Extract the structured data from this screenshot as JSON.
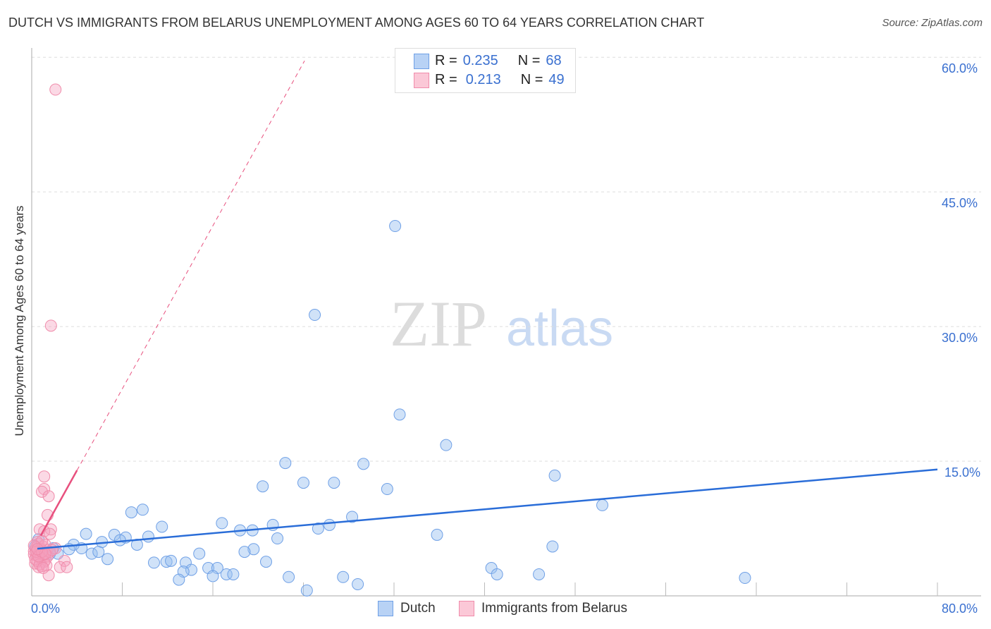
{
  "title": "DUTCH VS IMMIGRANTS FROM BELARUS UNEMPLOYMENT AMONG AGES 60 TO 64 YEARS CORRELATION CHART",
  "source": "Source: ZipAtlas.com",
  "watermark": "ZIPatlas",
  "chart_data": {
    "type": "scatter",
    "title": "DUTCH VS IMMIGRANTS FROM BELARUS UNEMPLOYMENT AMONG AGES 60 TO 64 YEARS CORRELATION CHART",
    "xlabel": "",
    "ylabel": "Unemployment Among Ages 60 to 64 years",
    "xlim": [
      0,
      80
    ],
    "ylim": [
      0,
      62
    ],
    "x_tick_labels": [
      "0.0%",
      "80.0%"
    ],
    "y_tick_labels": [
      "15.0%",
      "30.0%",
      "45.0%",
      "60.0%"
    ],
    "y_ticks": [
      15,
      30,
      45,
      60
    ],
    "grid": true,
    "legend_placement": "top-center",
    "series": [
      {
        "name": "Dutch",
        "color": "#6fa0e6",
        "line_color": "#2a6dd8",
        "R": "0.235",
        "N": "68",
        "trend": {
          "slope": 0.111,
          "intercept": 5.2,
          "x_range": [
            0.5,
            80
          ]
        },
        "points": [
          [
            32.1,
            41.2
          ],
          [
            25.0,
            31.3
          ],
          [
            32.5,
            20.2
          ],
          [
            36.6,
            16.8
          ],
          [
            46.2,
            13.4
          ],
          [
            22.4,
            14.8
          ],
          [
            29.3,
            14.7
          ],
          [
            20.4,
            12.2
          ],
          [
            24.0,
            12.6
          ],
          [
            26.7,
            12.6
          ],
          [
            31.4,
            11.9
          ],
          [
            50.4,
            10.1
          ],
          [
            8.8,
            9.3
          ],
          [
            9.8,
            9.6
          ],
          [
            28.3,
            8.8
          ],
          [
            16.8,
            8.1
          ],
          [
            11.5,
            7.7
          ],
          [
            21.3,
            7.9
          ],
          [
            26.3,
            7.9
          ],
          [
            25.3,
            7.5
          ],
          [
            18.4,
            7.3
          ],
          [
            19.5,
            7.3
          ],
          [
            4.8,
            6.9
          ],
          [
            7.3,
            6.8
          ],
          [
            8.3,
            6.5
          ],
          [
            10.3,
            6.6
          ],
          [
            7.8,
            6.2
          ],
          [
            21.7,
            6.4
          ],
          [
            35.8,
            6.8
          ],
          [
            6.2,
            6.0
          ],
          [
            9.3,
            5.7
          ],
          [
            46.0,
            5.5
          ],
          [
            3.7,
            5.7
          ],
          [
            4.4,
            5.3
          ],
          [
            3.3,
            5.2
          ],
          [
            19.6,
            5.2
          ],
          [
            18.8,
            4.9
          ],
          [
            5.3,
            4.7
          ],
          [
            5.9,
            4.9
          ],
          [
            14.8,
            4.7
          ],
          [
            2.3,
            4.7
          ],
          [
            6.7,
            4.1
          ],
          [
            10.8,
            3.7
          ],
          [
            11.9,
            3.8
          ],
          [
            12.3,
            3.9
          ],
          [
            13.6,
            3.7
          ],
          [
            20.7,
            3.8
          ],
          [
            15.6,
            3.1
          ],
          [
            16.4,
            3.1
          ],
          [
            14.1,
            2.9
          ],
          [
            13.4,
            2.7
          ],
          [
            40.6,
            3.1
          ],
          [
            17.2,
            2.4
          ],
          [
            16.0,
            2.2
          ],
          [
            17.8,
            2.4
          ],
          [
            41.1,
            2.4
          ],
          [
            44.8,
            2.4
          ],
          [
            13.0,
            1.8
          ],
          [
            22.7,
            2.1
          ],
          [
            27.5,
            2.1
          ],
          [
            63.0,
            2.0
          ],
          [
            28.8,
            1.3
          ],
          [
            24.3,
            0.6
          ],
          [
            0.9,
            5.1
          ],
          [
            1.6,
            4.7
          ],
          [
            0.6,
            6.3
          ],
          [
            1.9,
            5.3
          ],
          [
            0.3,
            5.5
          ]
        ]
      },
      {
        "name": "Immigrants from Belarus",
        "color": "#f08cab",
        "line_color": "#e8507e",
        "R": "0.213",
        "N": "49",
        "trend": {
          "slope": 2.27,
          "intercept": 4.9,
          "solid_range": [
            0.8,
            4.0
          ],
          "dashed_range": [
            4.0,
            24.1
          ]
        },
        "points": [
          [
            2.1,
            56.4
          ],
          [
            1.7,
            30.1
          ],
          [
            1.1,
            13.3
          ],
          [
            1.1,
            11.9
          ],
          [
            0.9,
            11.6
          ],
          [
            1.5,
            11.1
          ],
          [
            1.4,
            9.0
          ],
          [
            0.7,
            7.4
          ],
          [
            1.7,
            7.4
          ],
          [
            1.1,
            7.2
          ],
          [
            1.6,
            6.9
          ],
          [
            2.1,
            5.3
          ],
          [
            2.9,
            3.9
          ],
          [
            2.5,
            3.2
          ],
          [
            3.1,
            3.2
          ],
          [
            1.5,
            2.3
          ],
          [
            0.2,
            5.0
          ],
          [
            0.4,
            4.5
          ],
          [
            0.6,
            5.8
          ],
          [
            0.8,
            4.2
          ],
          [
            1.0,
            5.5
          ],
          [
            1.2,
            4.0
          ],
          [
            0.3,
            3.6
          ],
          [
            0.5,
            6.0
          ],
          [
            0.9,
            3.3
          ],
          [
            1.3,
            5.1
          ],
          [
            0.2,
            4.6
          ],
          [
            0.7,
            4.8
          ],
          [
            1.1,
            3.8
          ],
          [
            0.4,
            5.4
          ],
          [
            1.4,
            4.4
          ],
          [
            0.6,
            3.2
          ],
          [
            0.8,
            5.2
          ],
          [
            1.0,
            4.6
          ],
          [
            0.3,
            4.1
          ],
          [
            1.2,
            5.7
          ],
          [
            0.5,
            3.9
          ],
          [
            0.9,
            6.1
          ],
          [
            1.6,
            4.9
          ],
          [
            0.2,
            5.6
          ],
          [
            0.7,
            3.5
          ],
          [
            1.3,
            3.4
          ],
          [
            0.4,
            4.9
          ],
          [
            1.0,
            3.1
          ],
          [
            1.8,
            5.1
          ],
          [
            0.6,
            4.4
          ],
          [
            0.9,
            4.9
          ],
          [
            1.2,
            4.7
          ],
          [
            0.5,
            5.2
          ]
        ]
      }
    ]
  },
  "legend": {
    "r_label": "R =",
    "n_label": "N ="
  }
}
